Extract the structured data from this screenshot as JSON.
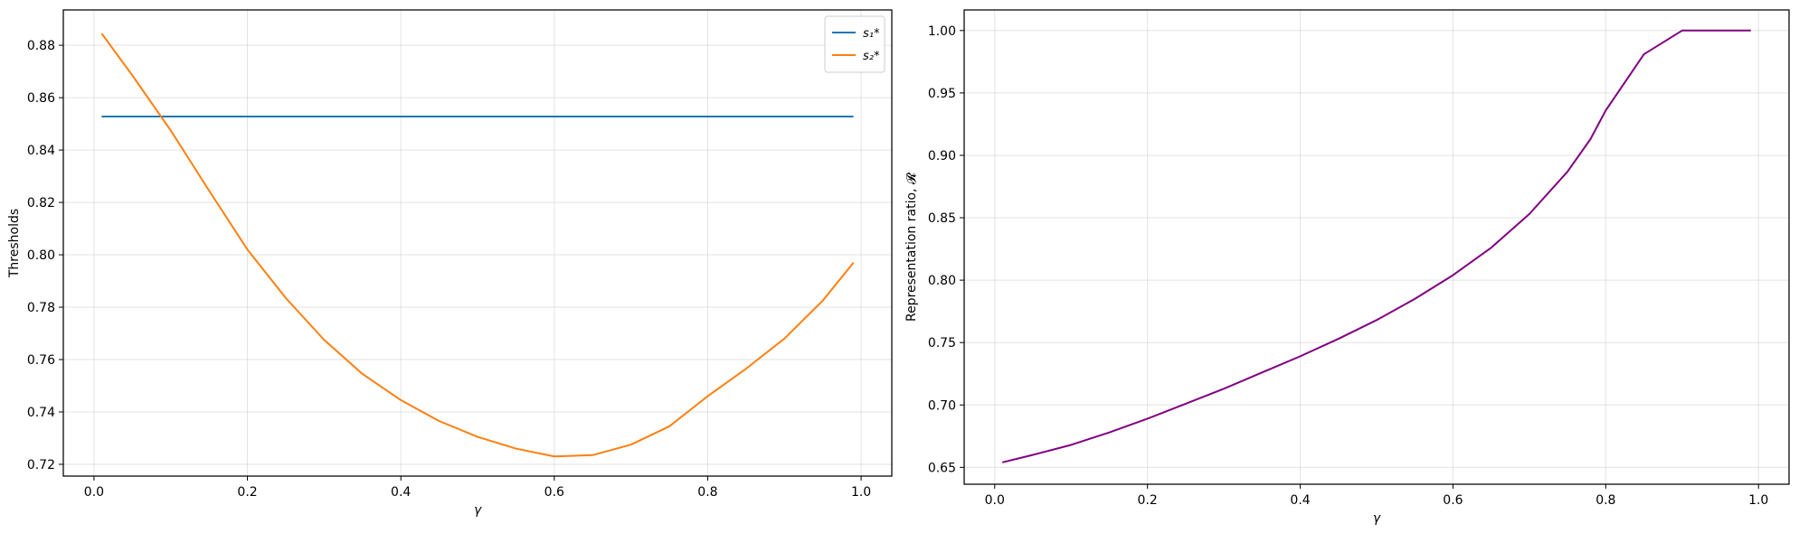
{
  "chart_data": [
    {
      "type": "line",
      "xlabel": "γ",
      "ylabel": "Thresholds",
      "xlim": [
        -0.04,
        1.04
      ],
      "ylim": [
        0.7155,
        0.8935
      ],
      "xticks": [
        0.0,
        0.2,
        0.4,
        0.6,
        0.8,
        1.0
      ],
      "xtick_labels": [
        "0.0",
        "0.2",
        "0.4",
        "0.6",
        "0.8",
        "1.0"
      ],
      "yticks": [
        0.72,
        0.74,
        0.76,
        0.78,
        0.8,
        0.82,
        0.84,
        0.86,
        0.88
      ],
      "ytick_labels": [
        "0.72",
        "0.74",
        "0.76",
        "0.78",
        "0.80",
        "0.82",
        "0.84",
        "0.86",
        "0.88"
      ],
      "grid": true,
      "legend_position": "top-right",
      "x": [
        0.01,
        0.05,
        0.1,
        0.15,
        0.2,
        0.25,
        0.3,
        0.35,
        0.4,
        0.45,
        0.5,
        0.55,
        0.6,
        0.65,
        0.7,
        0.75,
        0.8,
        0.85,
        0.9,
        0.95,
        0.99
      ],
      "series": [
        {
          "name": "s₁*",
          "color": "#1f77b4",
          "values": [
            0.8528,
            0.8528,
            0.8528,
            0.8528,
            0.8528,
            0.8528,
            0.8528,
            0.8528,
            0.8528,
            0.8528,
            0.8528,
            0.8528,
            0.8528,
            0.8528,
            0.8528,
            0.8528,
            0.8528,
            0.8528,
            0.8528,
            0.8528,
            0.8528
          ]
        },
        {
          "name": "s₂*",
          "color": "#ff7f0e",
          "values": [
            0.8845,
            0.8685,
            0.8475,
            0.8245,
            0.802,
            0.7835,
            0.7675,
            0.7545,
            0.7445,
            0.7365,
            0.7305,
            0.726,
            0.723,
            0.7235,
            0.7275,
            0.7345,
            0.746,
            0.7565,
            0.768,
            0.7825,
            0.797
          ]
        }
      ]
    },
    {
      "type": "line",
      "xlabel": "γ",
      "ylabel": "Representation ratio, 𝓡",
      "xlim": [
        -0.04,
        1.04
      ],
      "ylim": [
        0.6365,
        1.0165
      ],
      "xticks": [
        0.0,
        0.2,
        0.4,
        0.6,
        0.8,
        1.0
      ],
      "xtick_labels": [
        "0.0",
        "0.2",
        "0.4",
        "0.6",
        "0.8",
        "1.0"
      ],
      "yticks": [
        0.65,
        0.7,
        0.75,
        0.8,
        0.85,
        0.9,
        0.95,
        1.0
      ],
      "ytick_labels": [
        "0.65",
        "0.70",
        "0.75",
        "0.80",
        "0.85",
        "0.90",
        "0.95",
        "1.00"
      ],
      "grid": true,
      "x": [
        0.01,
        0.05,
        0.1,
        0.15,
        0.2,
        0.25,
        0.3,
        0.35,
        0.4,
        0.45,
        0.5,
        0.55,
        0.6,
        0.65,
        0.7,
        0.75,
        0.78,
        0.8,
        0.85,
        0.9,
        0.95,
        0.99
      ],
      "series": [
        {
          "color": "#800080",
          "values": [
            0.654,
            0.66,
            0.668,
            0.678,
            0.689,
            0.701,
            0.713,
            0.726,
            0.739,
            0.753,
            0.768,
            0.785,
            0.804,
            0.826,
            0.853,
            0.887,
            0.913,
            0.936,
            0.981,
            1.0,
            1.0,
            1.0
          ]
        }
      ]
    }
  ]
}
